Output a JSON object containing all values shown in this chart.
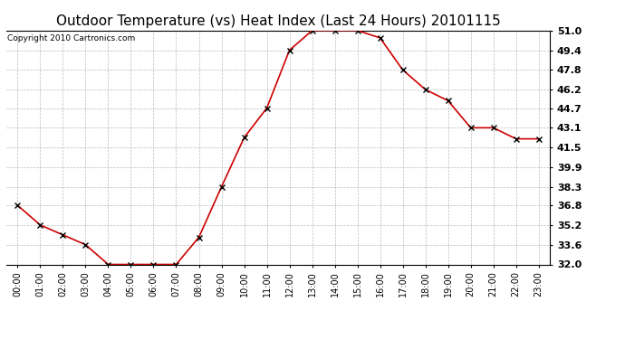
{
  "title": "Outdoor Temperature (vs) Heat Index (Last 24 Hours) 20101115",
  "copyright_text": "Copyright 2010 Cartronics.com",
  "x_labels": [
    "00:00",
    "01:00",
    "02:00",
    "03:00",
    "04:00",
    "05:00",
    "06:00",
    "07:00",
    "08:00",
    "09:00",
    "10:00",
    "11:00",
    "12:00",
    "13:00",
    "14:00",
    "15:00",
    "16:00",
    "17:00",
    "18:00",
    "19:00",
    "20:00",
    "21:00",
    "22:00",
    "23:00"
  ],
  "y_values": [
    36.8,
    35.2,
    34.4,
    33.6,
    32.0,
    32.0,
    32.0,
    32.0,
    34.2,
    38.3,
    42.3,
    44.7,
    49.4,
    51.0,
    51.0,
    51.0,
    50.4,
    47.8,
    46.2,
    45.3,
    43.1,
    43.1,
    42.2,
    42.2
  ],
  "line_color": "#cc0000",
  "marker": "x",
  "marker_color": "#000000",
  "background_color": "#ffffff",
  "plot_bg_color": "#ffffff",
  "grid_color": "#aaaaaa",
  "ylim_min": 32.0,
  "ylim_max": 51.0,
  "ytick_labels": [
    "51.0",
    "49.4",
    "47.8",
    "46.2",
    "44.7",
    "43.1",
    "41.5",
    "39.9",
    "38.3",
    "36.8",
    "35.2",
    "33.6",
    "32.0"
  ],
  "ytick_values": [
    51.0,
    49.4,
    47.8,
    46.2,
    44.7,
    43.1,
    41.5,
    39.9,
    38.3,
    36.8,
    35.2,
    33.6,
    32.0
  ],
  "title_fontsize": 11,
  "tick_fontsize": 8,
  "xtick_fontsize": 7,
  "copyright_fontsize": 6.5
}
